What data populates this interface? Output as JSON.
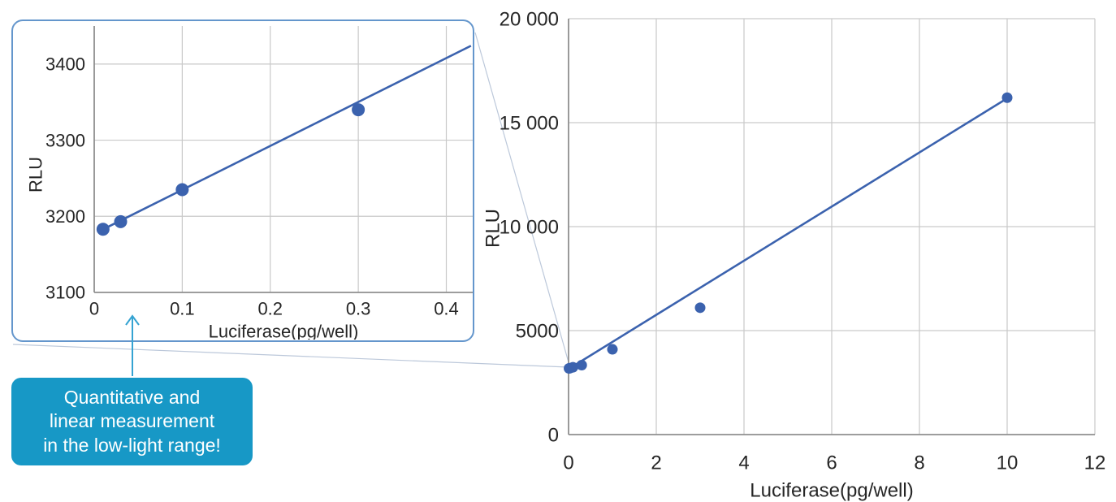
{
  "figure": {
    "description_labels": {
      "rlu_axis": "RLU",
      "luciferase_axis": "Luciferase(pg/well)"
    }
  },
  "callout": {
    "lines": [
      "Quantitative and",
      "linear measurement",
      "in the low-light range!"
    ],
    "bg_color": "#1798c6",
    "text_color": "#ffffff"
  },
  "colors": {
    "series_blue": "#3b62ae",
    "grid": "#c9c9c9",
    "axis": "#8f8f8f",
    "tick_text": "#262626",
    "inset_border": "#6496cc",
    "connector": "#bcc8da",
    "arrow": "#35a3d2"
  },
  "chart_data": [
    {
      "name": "inset_low_range",
      "type": "scatter",
      "title": "",
      "xlabel": "Luciferase(pg/well)",
      "ylabel": "RLU",
      "xlim": [
        0,
        0.43
      ],
      "ylim": [
        3100,
        3450
      ],
      "grid": true,
      "legend_position": "none",
      "xticks": [
        0,
        0.1,
        0.2,
        0.3,
        0.4
      ],
      "xtick_labels": [
        "0",
        "0.1",
        "0.2",
        "0.3",
        "0.4"
      ],
      "yticks": [
        3100,
        3200,
        3300,
        3400
      ],
      "ytick_labels": [
        "3100",
        "3200",
        "3300",
        "3400"
      ],
      "points": [
        [
          0.01,
          3183
        ],
        [
          0.03,
          3193
        ],
        [
          0.1,
          3235
        ],
        [
          0.3,
          3340
        ]
      ],
      "trendline": {
        "x": [
          0.005,
          0.428
        ],
        "y": [
          3180,
          3424
        ]
      }
    },
    {
      "name": "main_full_range",
      "type": "scatter",
      "title": "",
      "xlabel": "Luciferase(pg/well)",
      "ylabel": "RLU",
      "xlim": [
        0,
        12
      ],
      "ylim": [
        0,
        20000
      ],
      "grid": true,
      "legend_position": "none",
      "xticks": [
        0,
        2,
        4,
        6,
        8,
        10,
        12
      ],
      "xtick_labels": [
        "0",
        "2",
        "4",
        "6",
        "8",
        "10",
        "12"
      ],
      "yticks": [
        0,
        5000,
        10000,
        15000,
        20000
      ],
      "ytick_labels": [
        "0",
        "5000",
        "10 000",
        "15 000",
        "20 000"
      ],
      "points": [
        [
          0.01,
          3183
        ],
        [
          0.03,
          3193
        ],
        [
          0.1,
          3235
        ],
        [
          0.3,
          3340
        ],
        [
          1,
          4100
        ],
        [
          3,
          6100
        ],
        [
          10,
          16200
        ]
      ],
      "trendline": {
        "x": [
          0.15,
          10.1
        ],
        "y": [
          3350,
          16300
        ]
      }
    }
  ]
}
